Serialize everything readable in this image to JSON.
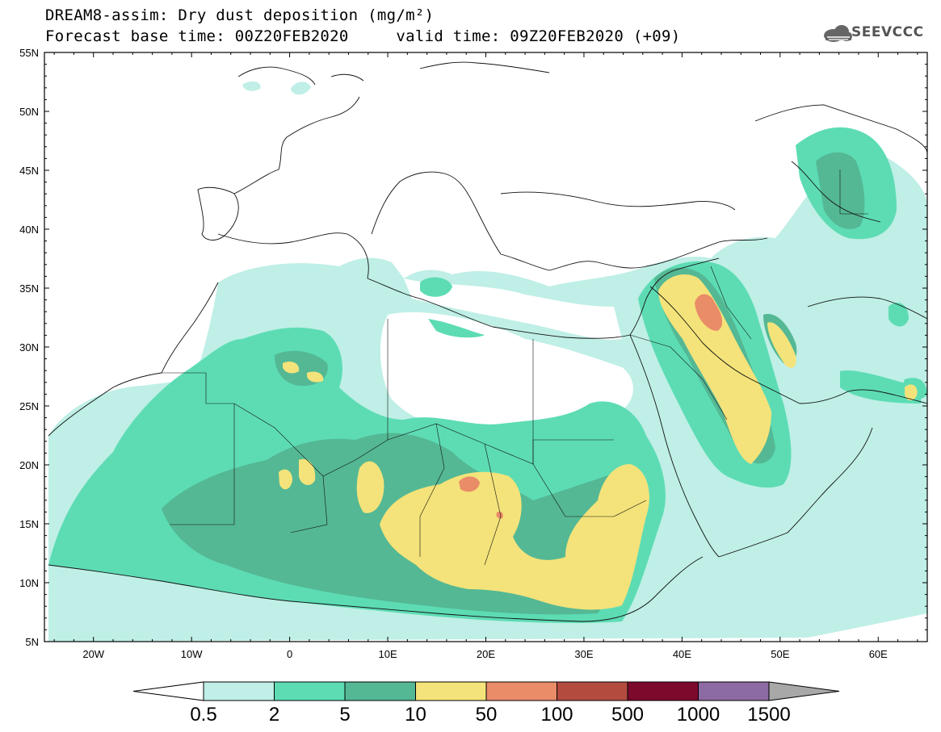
{
  "header": {
    "title": "DREAM8-assim: Dry dust deposition (mg/m²)",
    "subtitle_base": "Forecast base time: 00Z20FEB2020",
    "subtitle_valid": "valid time: 09Z20FEB2020 (+09)",
    "logo_text": "SEEVCCC"
  },
  "map": {
    "lat_labels": [
      "55N",
      "50N",
      "45N",
      "40N",
      "35N",
      "30N",
      "25N",
      "20N",
      "15N",
      "10N",
      "5N"
    ],
    "lon_labels": [
      "20W",
      "10W",
      "0",
      "10E",
      "20E",
      "30E",
      "40E",
      "50E",
      "60E"
    ],
    "extent": {
      "lon": [
        -25,
        65
      ],
      "lat": [
        5,
        55
      ]
    }
  },
  "colorbar": {
    "labels": [
      "0.5",
      "2",
      "5",
      "10",
      "50",
      "100",
      "500",
      "1000",
      "1500"
    ],
    "colors": [
      "#bfefe6",
      "#5ddcb4",
      "#54b894",
      "#f4e37a",
      "#e98c68",
      "#b44b3f",
      "#7d0a2c",
      "#8c6aa2"
    ],
    "under_color": "#ffffff",
    "over_color": "#a8a8a8"
  },
  "legend_colors": {
    "c0_5": "#bfefe6",
    "c2": "#5ddcb4",
    "c5": "#54b894",
    "c10": "#f4e37a",
    "c50": "#e98c68"
  }
}
